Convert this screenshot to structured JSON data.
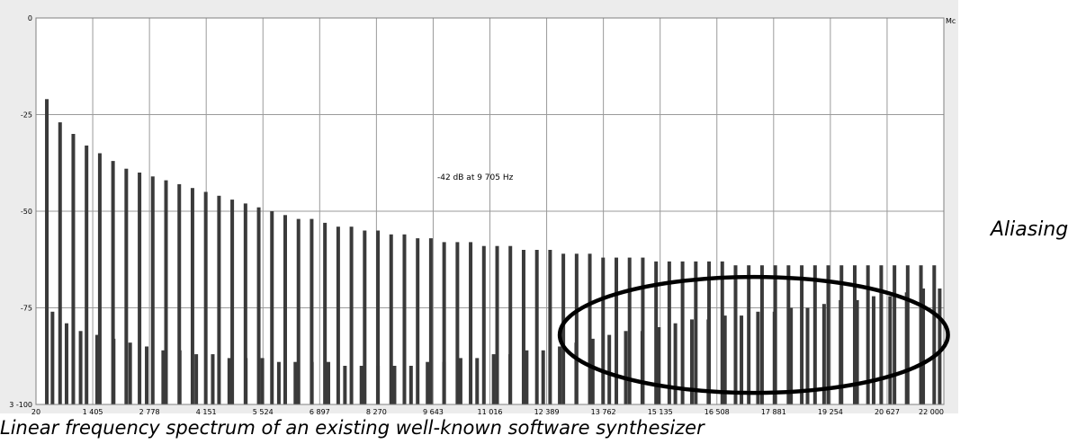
{
  "chart_data": {
    "type": "bar",
    "title": "",
    "xlabel": "",
    "ylabel": "",
    "xlim": [
      20,
      22000
    ],
    "ylim": [
      -100,
      0
    ],
    "x_ticks": [
      "20",
      "1 405",
      "2 778",
      "4 151",
      "5 524",
      "6 897",
      "8 270",
      "9 643",
      "11 016",
      "12 389",
      "13 762",
      "15 135",
      "16 508",
      "17 881",
      "19 254",
      "20 627",
      "22 000"
    ],
    "y_ticks": [
      "0",
      "-25",
      "-50",
      "-75",
      "3 -100"
    ],
    "y_tick_values": [
      0,
      -25,
      -50,
      -75,
      -100
    ],
    "grid": true,
    "cursor_readout": "-42 dB at 9 705 Hz",
    "right_edge_label": "Mc",
    "annotation": {
      "text": "Aliasing",
      "region_x": [
        12700,
        22100
      ],
      "region_y": [
        -67,
        -97
      ]
    },
    "series": [
      {
        "values_note": "harmonic peaks",
        "x": [
          282,
          603,
          923,
          1244,
          1565,
          1885,
          2206,
          2527,
          2847,
          3168,
          3489,
          3809,
          4130,
          4451,
          4771,
          5092,
          5413,
          5733,
          6054,
          6375,
          6695,
          7016,
          7337,
          7657,
          7978,
          8299,
          8619,
          8940,
          9261,
          9581,
          9902,
          10223,
          10543,
          10864,
          11185,
          11505,
          11826,
          12147,
          12467,
          12788,
          13109,
          13429,
          13750,
          14071,
          14391,
          14712,
          15033,
          15353,
          15674,
          15995,
          16315,
          16636,
          16957,
          17277,
          17598,
          17919,
          18239,
          18560,
          18881,
          19201,
          19522,
          19843,
          20163,
          20484,
          20805,
          21125,
          21446,
          21767
        ],
        "values": [
          -21,
          -27,
          -30,
          -33,
          -35,
          -37,
          -39,
          -40,
          -41,
          -42,
          -43,
          -44,
          -45,
          -46,
          -47,
          -48,
          -49,
          -50,
          -51,
          -52,
          -52,
          -53,
          -54,
          -54,
          -55,
          -55,
          -56,
          -56,
          -57,
          -57,
          -58,
          -58,
          -58,
          -59,
          -59,
          -59,
          -60,
          -60,
          -60,
          -61,
          -61,
          -61,
          -62,
          -62,
          -62,
          -62,
          -63,
          -63,
          -63,
          -63,
          -63,
          -63,
          -64,
          -64,
          -64,
          -64,
          -64,
          -64,
          -64,
          -64,
          -64,
          -64,
          -64,
          -64,
          -64,
          -64,
          -64,
          -64
        ]
      },
      {
        "values_note": "alias components",
        "x": [
          420,
          760,
          1100,
          1500,
          1900,
          2300,
          2700,
          3100,
          3500,
          3900,
          4300,
          4700,
          5100,
          5500,
          5900,
          6300,
          6700,
          7100,
          7500,
          7900,
          8300,
          8700,
          9100,
          9500,
          9900,
          10300,
          10700,
          11100,
          11500,
          11900,
          12300,
          12700,
          13100,
          13500,
          13900,
          14300,
          14700,
          15100,
          15500,
          15900,
          16300,
          16700,
          17100,
          17500,
          17900,
          18300,
          18700,
          19100,
          19500,
          19900,
          20300,
          20700,
          21100,
          21500,
          21900
        ],
        "values": [
          -76,
          -79,
          -81,
          -82,
          -83,
          -84,
          -85,
          -86,
          -86,
          -87,
          -87,
          -88,
          -88,
          -88,
          -89,
          -89,
          -89,
          -89,
          -90,
          -90,
          -90,
          -90,
          -90,
          -89,
          -89,
          -88,
          -88,
          -87,
          -87,
          -86,
          -86,
          -85,
          -84,
          -83,
          -82,
          -81,
          -81,
          -80,
          -79,
          -78,
          -78,
          -77,
          -77,
          -76,
          -76,
          -75,
          -75,
          -74,
          -73,
          -73,
          -72,
          -72,
          -71,
          -70,
          -70
        ]
      }
    ]
  },
  "annotation_label": "Aliasing",
  "caption": "Linear frequency spectrum of an existing well-known software synthesizer"
}
